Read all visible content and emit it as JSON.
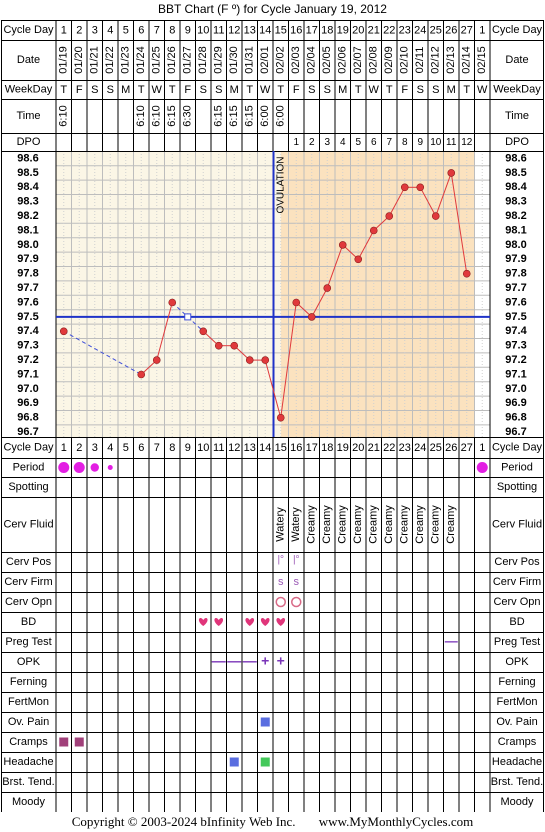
{
  "title": "BBT Chart (F º) for Cycle January 19, 2012",
  "footer": {
    "copyright": "Copyright © 2003-2024 bInfinity Web Inc.",
    "site": "www.MyMonthlyCycles.com"
  },
  "row_labels": {
    "cycle_day": "Cycle Day",
    "date": "Date",
    "weekday": "WeekDay",
    "time": "Time",
    "dpo": "DPO",
    "period": "Period",
    "spotting": "Spotting",
    "cerv_fluid": "Cerv Fluid",
    "cerv_pos": "Cerv Pos",
    "cerv_firm": "Cerv Firm",
    "cerv_opn": "Cerv Opn",
    "bd": "BD",
    "preg_test": "Preg Test",
    "opk": "OPK",
    "ferning": "Ferning",
    "fertmon": "FertMon",
    "ov_pain": "Ov. Pain",
    "cramps": "Cramps",
    "headache": "Headache",
    "brst_tend": "Brst. Tend.",
    "moody": "Moody"
  },
  "days": {
    "cycle_day": [
      "1",
      "2",
      "3",
      "4",
      "5",
      "6",
      "7",
      "8",
      "9",
      "10",
      "11",
      "12",
      "13",
      "14",
      "15",
      "16",
      "17",
      "18",
      "19",
      "20",
      "21",
      "22",
      "23",
      "24",
      "25",
      "26",
      "27",
      "1"
    ],
    "date": [
      "01/19",
      "01/20",
      "01/21",
      "01/22",
      "01/23",
      "01/24",
      "01/25",
      "01/26",
      "01/27",
      "01/28",
      "01/29",
      "01/30",
      "01/31",
      "02/01",
      "02/02",
      "02/03",
      "02/04",
      "02/05",
      "02/06",
      "02/07",
      "02/08",
      "02/09",
      "02/10",
      "02/11",
      "02/12",
      "02/13",
      "02/14",
      "02/15"
    ],
    "weekday": [
      "T",
      "F",
      "S",
      "S",
      "M",
      "T",
      "W",
      "T",
      "F",
      "S",
      "S",
      "M",
      "T",
      "W",
      "T",
      "F",
      "S",
      "S",
      "M",
      "T",
      "W",
      "T",
      "F",
      "S",
      "S",
      "M",
      "T",
      "W"
    ],
    "time": [
      "6:10",
      "",
      "",
      "",
      "",
      "6:10",
      "6:10",
      "6:15",
      "6:30",
      "",
      "6:15",
      "6:15",
      "6:15",
      "6:00",
      "6:00",
      "",
      "",
      "",
      "",
      "",
      "",
      "",
      "",
      "",
      "",
      "",
      "",
      ""
    ],
    "dpo": [
      "",
      "",
      "",
      "",
      "",
      "",
      "",
      "",
      "",
      "",
      "",
      "",
      "",
      "",
      "",
      "1",
      "2",
      "3",
      "4",
      "5",
      "6",
      "7",
      "8",
      "9",
      "10",
      "11",
      "12",
      ""
    ]
  },
  "temp_axis_labels": [
    "98.6",
    "98.5",
    "98.4",
    "98.3",
    "98.2",
    "98.1",
    "98.0",
    "97.9",
    "97.8",
    "97.7",
    "97.6",
    "97.5",
    "97.4",
    "97.3",
    "97.2",
    "97.1",
    "97.0",
    "96.9",
    "96.8",
    "96.7"
  ],
  "chart_data": {
    "type": "line",
    "title": "BBT Chart (F º) for Cycle January 19, 2012",
    "x": [
      1,
      2,
      3,
      4,
      5,
      6,
      7,
      8,
      9,
      10,
      11,
      12,
      13,
      14,
      15,
      16,
      17,
      18,
      19,
      20,
      21,
      22,
      23,
      24,
      25,
      26,
      27,
      28
    ],
    "ylim": [
      96.7,
      98.6
    ],
    "temps": [
      97.4,
      null,
      null,
      null,
      null,
      97.1,
      97.2,
      97.6,
      97.5,
      97.4,
      97.3,
      97.3,
      97.2,
      97.2,
      96.8,
      97.6,
      97.5,
      97.7,
      98.0,
      97.9,
      98.1,
      98.2,
      98.4,
      98.4,
      98.2,
      98.5,
      97.8,
      null
    ],
    "discarded_days": [
      9
    ],
    "coverline": 97.5,
    "ovulation_day": 15,
    "ovulation_label": "OVULATION",
    "grid": true
  },
  "symptoms": {
    "period": {
      "1": "heavy",
      "2": "heavy",
      "3": "medium",
      "4": "light",
      "28": "heavy"
    },
    "cerv_fluid": {
      "15": "Watery",
      "16": "Watery",
      "17": "Creamy",
      "18": "Creamy",
      "19": "Creamy",
      "20": "Creamy",
      "21": "Creamy",
      "22": "Creamy",
      "23": "Creamy",
      "24": "Creamy",
      "25": "Creamy",
      "26": "Creamy"
    },
    "cerv_pos": {
      "15": "|°",
      "16": "|°"
    },
    "cerv_firm": {
      "15": "s",
      "16": "s"
    },
    "cerv_opn": [
      "15",
      "16"
    ],
    "bd": [
      "10",
      "11",
      "13",
      "14",
      "15"
    ],
    "preg_test": {
      "26": "—"
    },
    "opk": {
      "11": "—",
      "12": "—",
      "13": "—",
      "14": "+",
      "15": "+"
    },
    "ov_pain": [
      "14"
    ],
    "cramps": [
      "1",
      "2"
    ],
    "headache": {
      "12": "blue",
      "14": "green"
    }
  },
  "colors": {
    "bg_pre": "#fbf6e6",
    "bg_post": "#fbe2bf",
    "grid": "#bdbdbd",
    "temp_line": "#e0393c",
    "coverline": "#1f33c8",
    "ovulation_line": "#1f33c8",
    "interrupt_line": "#3f4fd8",
    "period": "#e31ee3",
    "ov_pain": "#5a6ee0",
    "cramps": "#a1407a",
    "headache_blue": "#5a6ee0",
    "headache_green": "#44c95b",
    "bd_heart": "#e0357a",
    "opk": "#7a35b8",
    "cerv_mark": "#9b59b6",
    "cerv_opn": "#d86a87"
  }
}
